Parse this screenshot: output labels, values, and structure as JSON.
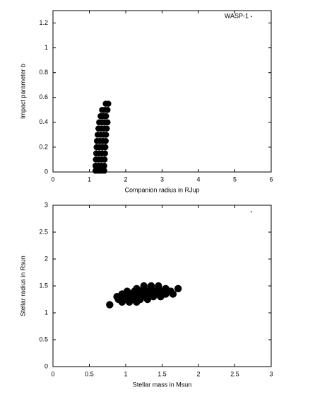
{
  "chart_data": [
    {
      "type": "scatter",
      "xlabel": "Companion radius in RJup",
      "ylabel": "Impact parameter b",
      "xlim": [
        0,
        6
      ],
      "ylim": [
        0,
        1.3
      ],
      "xticks": [
        0,
        1,
        2,
        3,
        4,
        5,
        6
      ],
      "yticks": [
        0,
        0.2,
        0.4,
        0.6,
        0.8,
        1,
        1.2
      ],
      "legend": "upper right",
      "series": [
        {
          "name": "WASP-1",
          "color": "#000000",
          "x": [
            1.17,
            1.25,
            1.33,
            1.41,
            1.17,
            1.25,
            1.33,
            1.41,
            1.18,
            1.26,
            1.34,
            1.42,
            1.19,
            1.27,
            1.35,
            1.43,
            1.2,
            1.28,
            1.36,
            1.44,
            1.21,
            1.29,
            1.37,
            1.45,
            1.23,
            1.31,
            1.39,
            1.46,
            1.25,
            1.33,
            1.41,
            1.48,
            1.27,
            1.35,
            1.43,
            1.5,
            1.31,
            1.38,
            1.46,
            1.35,
            1.42,
            1.5,
            1.45,
            1.52
          ],
          "values": [
            0.01,
            0.01,
            0.01,
            0.01,
            0.05,
            0.05,
            0.05,
            0.05,
            0.1,
            0.1,
            0.1,
            0.1,
            0.15,
            0.15,
            0.15,
            0.15,
            0.2,
            0.2,
            0.2,
            0.2,
            0.25,
            0.25,
            0.25,
            0.25,
            0.3,
            0.3,
            0.3,
            0.3,
            0.35,
            0.35,
            0.35,
            0.35,
            0.4,
            0.4,
            0.4,
            0.4,
            0.45,
            0.45,
            0.45,
            0.5,
            0.5,
            0.5,
            0.55,
            0.55
          ]
        }
      ]
    },
    {
      "type": "scatter",
      "xlabel": "Stellar mass in Msun",
      "ylabel": "Stellar radius in Rsun",
      "xlim": [
        0,
        3
      ],
      "ylim": [
        0,
        3
      ],
      "xticks": [
        0,
        0.5,
        1,
        1.5,
        2,
        2.5,
        3
      ],
      "yticks": [
        0,
        0.5,
        1,
        1.5,
        2,
        2.5,
        3
      ],
      "legend": "upper right",
      "series": [
        {
          "color": "#000000",
          "x": [
            0.95,
            1.05,
            1.15,
            0.9,
            1.0,
            1.1,
            1.2,
            1.3,
            0.88,
            0.98,
            1.08,
            1.18,
            1.28,
            1.38,
            1.48,
            0.95,
            1.05,
            1.15,
            1.25,
            1.35,
            1.45,
            1.55,
            1.65,
            1.02,
            1.12,
            1.22,
            1.32,
            1.42,
            1.52,
            1.62,
            1.15,
            1.25,
            1.35,
            1.45,
            1.55,
            1.25,
            1.35,
            1.45,
            0.78,
            1.72
          ],
          "values": [
            1.2,
            1.2,
            1.2,
            1.25,
            1.25,
            1.25,
            1.25,
            1.25,
            1.3,
            1.3,
            1.3,
            1.3,
            1.3,
            1.3,
            1.3,
            1.35,
            1.35,
            1.35,
            1.35,
            1.35,
            1.35,
            1.35,
            1.35,
            1.4,
            1.4,
            1.4,
            1.4,
            1.4,
            1.4,
            1.4,
            1.45,
            1.45,
            1.45,
            1.45,
            1.45,
            1.5,
            1.5,
            1.5,
            1.15,
            1.45
          ]
        }
      ]
    }
  ]
}
